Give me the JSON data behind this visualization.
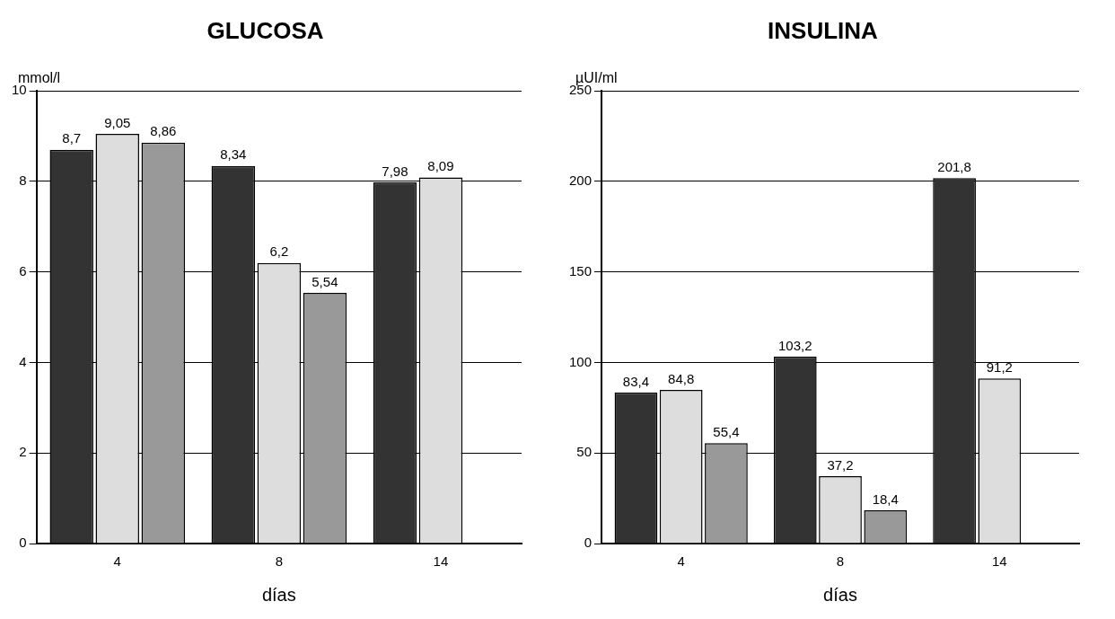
{
  "chart_data": [
    {
      "type": "bar",
      "title": "GLUCOSA",
      "xlabel": "días",
      "ylabel": "mmol/l",
      "categories": [
        "4",
        "8",
        "14"
      ],
      "ylim": [
        0,
        10
      ],
      "yticks": [
        0,
        2,
        4,
        6,
        8,
        10
      ],
      "grid": "y",
      "legend": false,
      "series": [
        {
          "color": "#333333",
          "values": [
            8.7,
            8.34,
            7.98
          ],
          "value_labels": [
            "8,7",
            "8,34",
            "7,98"
          ]
        },
        {
          "color": "#dddddd",
          "values": [
            9.05,
            6.2,
            8.09
          ],
          "value_labels": [
            "9,05",
            "6,2",
            "8,09"
          ]
        },
        {
          "color": "#999999",
          "values": [
            8.86,
            5.54,
            null
          ],
          "value_labels": [
            "8,86",
            "5,54",
            null
          ]
        }
      ]
    },
    {
      "type": "bar",
      "title": "INSULINA",
      "xlabel": "días",
      "ylabel": "µUI/ml",
      "categories": [
        "4",
        "8",
        "14"
      ],
      "ylim": [
        0,
        250
      ],
      "yticks": [
        0,
        50,
        100,
        150,
        200,
        250
      ],
      "grid": "y",
      "legend": false,
      "series": [
        {
          "color": "#333333",
          "values": [
            83.4,
            103.2,
            201.8
          ],
          "value_labels": [
            "83,4",
            "103,2",
            "201,8"
          ]
        },
        {
          "color": "#dddddd",
          "values": [
            84.8,
            37.2,
            91.2
          ],
          "value_labels": [
            "84,8",
            "37,2",
            "91,2"
          ]
        },
        {
          "color": "#999999",
          "values": [
            55.4,
            18.4,
            null
          ],
          "value_labels": [
            "55,4",
            "18,4",
            null
          ]
        }
      ]
    }
  ]
}
